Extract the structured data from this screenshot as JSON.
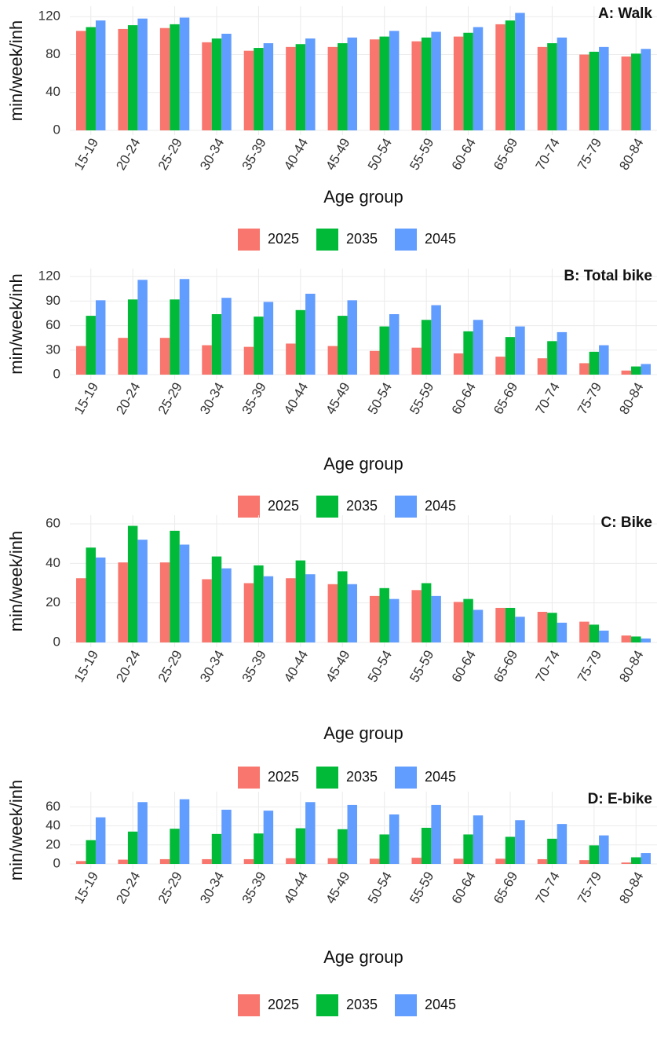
{
  "chart_data": [
    {
      "type": "bar",
      "title": "A: Walk",
      "xlabel": "Age group",
      "ylabel": "min/week/inh",
      "categories": [
        "15-19",
        "20-24",
        "25-29",
        "30-34",
        "35-39",
        "40-44",
        "45-49",
        "50-54",
        "55-59",
        "60-64",
        "65-69",
        "70-74",
        "75-79",
        "80-84"
      ],
      "series": [
        {
          "name": "2025",
          "color": "#F8766D",
          "values": [
            105,
            107,
            108,
            93,
            84,
            88,
            88,
            96,
            94,
            99,
            112,
            88,
            80,
            78
          ]
        },
        {
          "name": "2035",
          "color": "#00BA38",
          "values": [
            109,
            111,
            112,
            97,
            87,
            91,
            92,
            99,
            98,
            103,
            116,
            92,
            83,
            81
          ]
        },
        {
          "name": "2045",
          "color": "#619CFF",
          "values": [
            116,
            118,
            119,
            102,
            92,
            97,
            98,
            105,
            104,
            109,
            124,
            98,
            88,
            86
          ]
        }
      ],
      "ylim": [
        0,
        126
      ],
      "yticks": [
        0,
        40,
        80,
        120
      ],
      "grid": true,
      "legend": "bottom"
    },
    {
      "type": "bar",
      "title": "B: Total bike",
      "xlabel": "Age group",
      "ylabel": "min/week/inh",
      "categories": [
        "15-19",
        "20-24",
        "25-29",
        "30-34",
        "35-39",
        "40-44",
        "45-49",
        "50-54",
        "55-59",
        "60-64",
        "65-69",
        "70-74",
        "75-79",
        "80-84"
      ],
      "series": [
        {
          "name": "2025",
          "color": "#F8766D",
          "values": [
            35,
            45,
            45,
            36,
            34,
            38,
            35,
            29,
            33,
            26,
            22,
            20,
            14,
            5
          ]
        },
        {
          "name": "2035",
          "color": "#00BA38",
          "values": [
            72,
            92,
            92,
            74,
            71,
            79,
            72,
            59,
            67,
            53,
            46,
            41,
            28,
            10
          ]
        },
        {
          "name": "2045",
          "color": "#619CFF",
          "values": [
            91,
            116,
            117,
            94,
            89,
            99,
            91,
            74,
            85,
            67,
            59,
            52,
            36,
            13
          ]
        }
      ],
      "ylim": [
        0,
        124
      ],
      "yticks": [
        0,
        30,
        60,
        90,
        120
      ],
      "grid": true,
      "legend": "bottom"
    },
    {
      "type": "bar",
      "title": "C: Bike",
      "xlabel": "Age group",
      "ylabel": "min/week/inh",
      "categories": [
        "15-19",
        "20-24",
        "25-29",
        "30-34",
        "35-39",
        "40-44",
        "45-49",
        "50-54",
        "55-59",
        "60-64",
        "65-69",
        "70-74",
        "75-79",
        "80-84"
      ],
      "series": [
        {
          "name": "2025",
          "color": "#F8766D",
          "values": [
            32.5,
            40.5,
            40.5,
            32,
            30,
            32.5,
            29.5,
            23.5,
            26.5,
            20.5,
            17.5,
            15.5,
            10.5,
            3.5
          ]
        },
        {
          "name": "2035",
          "color": "#00BA38",
          "values": [
            48,
            59,
            56.5,
            43.5,
            39,
            41.5,
            36,
            27.5,
            30,
            22,
            17.5,
            15,
            9,
            3
          ]
        },
        {
          "name": "2045",
          "color": "#619CFF",
          "values": [
            43,
            52,
            49.5,
            37.5,
            33.5,
            34.5,
            29.5,
            22,
            23.5,
            16.5,
            13,
            10,
            6,
            2
          ]
        }
      ],
      "ylim": [
        0,
        62
      ],
      "yticks": [
        0,
        20,
        40,
        60
      ],
      "grid": true,
      "legend": "bottom"
    },
    {
      "type": "bar",
      "title": "D: E-bike",
      "xlabel": "Age group",
      "ylabel": "min/week/inh",
      "categories": [
        "15-19",
        "20-24",
        "25-29",
        "30-34",
        "35-39",
        "40-44",
        "45-49",
        "50-54",
        "55-59",
        "60-64",
        "65-69",
        "70-74",
        "75-79",
        "80-84"
      ],
      "series": [
        {
          "name": "2025",
          "color": "#F8766D",
          "values": [
            3,
            4.5,
            5,
            5,
            5,
            6,
            6,
            5.5,
            6.5,
            5.5,
            5.5,
            5,
            4,
            1.5
          ]
        },
        {
          "name": "2035",
          "color": "#00BA38",
          "values": [
            25,
            34,
            37,
            31.5,
            32,
            37.5,
            36.5,
            31,
            38,
            31,
            28.5,
            26.5,
            19.5,
            7
          ]
        },
        {
          "name": "2045",
          "color": "#619CFF",
          "values": [
            49,
            65,
            68,
            57,
            56,
            65,
            62,
            52,
            62,
            51,
            46,
            42,
            30,
            11.5
          ]
        }
      ],
      "ylim": [
        0,
        71
      ],
      "yticks": [
        0,
        20,
        40,
        60
      ],
      "grid": true,
      "legend": "bottom"
    }
  ]
}
